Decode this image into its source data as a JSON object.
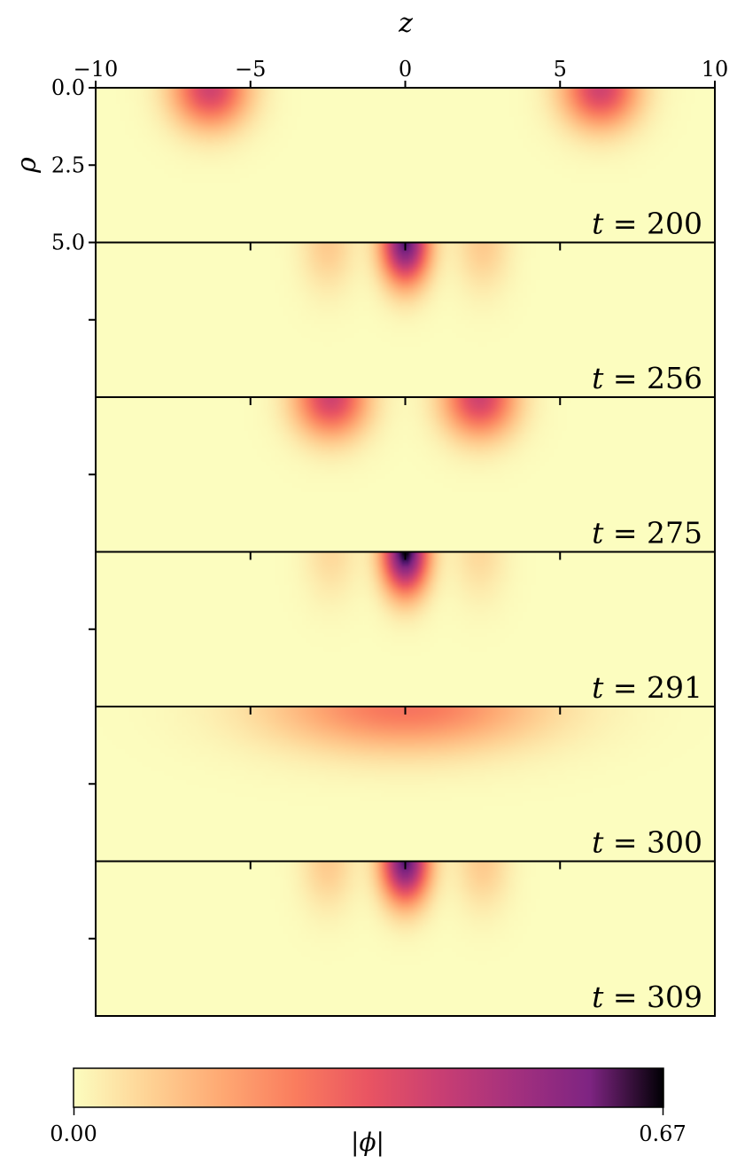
{
  "chart_data": {
    "type": "heatmap",
    "xlabel": "z",
    "ylabel": "ρ",
    "xlim": [
      -10,
      10
    ],
    "ylim": [
      0,
      5
    ],
    "x_ticks": [
      -10,
      -5,
      0,
      5,
      10
    ],
    "x_tick_labels": [
      "−10",
      "−5",
      "0",
      "5",
      "10"
    ],
    "y_ticks": [
      0,
      2.5,
      5
    ],
    "y_tick_labels": [
      "0.0",
      "2.5",
      "5.0"
    ],
    "colorbar": {
      "label": "|ϕ|",
      "min": 0.0,
      "max": 0.67,
      "min_label": "0.00",
      "max_label": "0.67",
      "colormap": "magma_r"
    },
    "panels": [
      {
        "t": 200,
        "t_label": "200",
        "blobs": [
          {
            "z": -6.3,
            "rho": 0,
            "amp": 0.4,
            "sz": 1.2,
            "sr": 1.25
          },
          {
            "z": 6.3,
            "rho": 0,
            "amp": 0.4,
            "sz": 1.2,
            "sr": 1.25
          }
        ]
      },
      {
        "t": 256,
        "t_label": "256",
        "blobs": [
          {
            "z": 0,
            "rho": 0,
            "amp": 0.62,
            "sz": 0.75,
            "sr": 1.3
          },
          {
            "z": -2.5,
            "rho": 0,
            "amp": 0.1,
            "sz": 0.85,
            "sr": 1.5
          },
          {
            "z": 2.5,
            "rho": 0,
            "amp": 0.1,
            "sz": 0.85,
            "sr": 1.5
          }
        ]
      },
      {
        "t": 275,
        "t_label": "275",
        "blobs": [
          {
            "z": -2.4,
            "rho": 0,
            "amp": 0.4,
            "sz": 1.15,
            "sr": 1.25
          },
          {
            "z": 2.4,
            "rho": 0,
            "amp": 0.4,
            "sz": 1.15,
            "sr": 1.25
          }
        ]
      },
      {
        "t": 291,
        "t_label": "291",
        "blobs": [
          {
            "z": 0,
            "rho": 0,
            "amp": 0.67,
            "sz": 0.72,
            "sr": 1.3
          },
          {
            "z": -2.4,
            "rho": 0,
            "amp": 0.07,
            "sz": 0.85,
            "sr": 1.5
          },
          {
            "z": 2.4,
            "rho": 0,
            "amp": 0.07,
            "sz": 0.85,
            "sr": 1.5
          }
        ]
      },
      {
        "t": 300,
        "t_label": "300",
        "blobs": [
          {
            "z": 0,
            "rho": 0,
            "amp": 0.27,
            "sz": 4.2,
            "sr": 1.4
          }
        ]
      },
      {
        "t": 309,
        "t_label": "309",
        "blobs": [
          {
            "z": 0,
            "rho": 0,
            "amp": 0.62,
            "sz": 0.75,
            "sr": 1.3
          },
          {
            "z": -2.5,
            "rho": 0,
            "amp": 0.1,
            "sz": 0.85,
            "sr": 1.5
          },
          {
            "z": 2.5,
            "rho": 0,
            "amp": 0.1,
            "sz": 0.85,
            "sr": 1.5
          }
        ]
      }
    ]
  }
}
